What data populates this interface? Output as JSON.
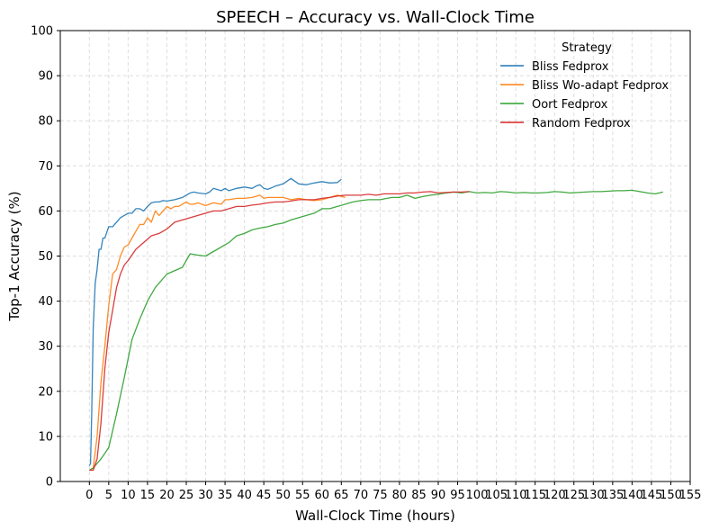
{
  "chart_data": {
    "type": "line",
    "title": "SPEECH – Accuracy vs. Wall-Clock Time",
    "xlabel": "Wall-Clock Time (hours)",
    "ylabel": "Top-1 Accuracy (%)",
    "xlim": [
      -7.5,
      155
    ],
    "ylim": [
      0,
      100
    ],
    "xticks": [
      0,
      5,
      10,
      15,
      20,
      25,
      30,
      35,
      40,
      45,
      50,
      55,
      60,
      65,
      70,
      75,
      80,
      85,
      90,
      95,
      100,
      105,
      110,
      115,
      120,
      125,
      130,
      135,
      140,
      145,
      150,
      155
    ],
    "yticks": [
      0,
      10,
      20,
      30,
      40,
      50,
      60,
      70,
      80,
      90,
      100
    ],
    "grid": true,
    "legend": {
      "title": "Strategy",
      "placement": "top-right"
    },
    "series": [
      {
        "name": "Bliss Fedprox",
        "color": "#1f77b4",
        "x": [
          0,
          0.3,
          0.6,
          1,
          1.5,
          2,
          2.5,
          3,
          3.5,
          4,
          5,
          6,
          7,
          8,
          9,
          10,
          11,
          12,
          13,
          14,
          15,
          16,
          17,
          18,
          19,
          20,
          22,
          24,
          25,
          26,
          27,
          28,
          30,
          31,
          32,
          34,
          35,
          36,
          38,
          40,
          42,
          43,
          44,
          45,
          46,
          48,
          50,
          52,
          54,
          56,
          58,
          60,
          62,
          64,
          65
        ],
        "y": [
          3.5,
          4,
          15,
          34,
          44,
          47,
          51.5,
          51.5,
          54,
          54,
          56.5,
          56.5,
          57.5,
          58.5,
          59,
          59.5,
          59.5,
          60.5,
          60.5,
          60,
          61,
          61.8,
          62,
          62,
          62.3,
          62.2,
          62.5,
          63,
          63.5,
          64,
          64.2,
          64,
          63.8,
          64.2,
          65,
          64.5,
          65,
          64.5,
          65,
          65.3,
          65,
          65.5,
          65.8,
          65,
          64.8,
          65.5,
          66,
          67.2,
          66,
          65.8,
          66.2,
          66.5,
          66.2,
          66.3,
          67
        ]
      },
      {
        "name": "Bliss Wo-adapt Fedprox",
        "color": "#ff7f0e",
        "x": [
          0,
          1,
          2,
          3,
          4,
          5,
          6,
          7,
          8,
          9,
          10,
          11,
          12,
          13,
          14,
          15,
          16,
          17,
          18,
          19,
          20,
          21,
          22,
          23,
          24,
          25,
          26,
          27,
          28,
          30,
          31,
          32,
          34,
          35,
          36,
          38,
          40,
          42,
          44,
          45,
          46,
          48,
          50,
          52,
          54,
          56,
          58,
          60,
          62,
          64,
          66
        ],
        "y": [
          2.5,
          3,
          10,
          22,
          30,
          39,
          46,
          47,
          50,
          52,
          52.5,
          54,
          55.5,
          57,
          57,
          58.5,
          57.5,
          60,
          59,
          60,
          61,
          60.5,
          61,
          61,
          61.5,
          62,
          61.5,
          61.5,
          61.8,
          61.2,
          61.5,
          61.8,
          61.5,
          62.5,
          62.5,
          62.8,
          62.8,
          63,
          63.5,
          62.8,
          63,
          63,
          63,
          62.5,
          62.8,
          62.5,
          62.3,
          62.5,
          63,
          63.5,
          63
        ]
      },
      {
        "name": "Oort Fedprox",
        "color": "#2ca02c",
        "x": [
          0,
          1,
          2,
          3,
          5,
          7,
          9,
          11,
          13,
          15,
          17,
          20,
          24,
          26,
          28,
          30,
          33,
          36,
          38,
          40,
          42,
          44,
          46,
          48,
          50,
          52,
          54,
          56,
          58,
          60,
          62,
          64,
          66,
          68,
          70,
          72,
          75,
          78,
          80,
          82,
          84,
          86,
          88,
          90,
          92,
          94,
          96,
          98,
          100,
          102,
          104,
          106,
          108,
          110,
          112,
          114,
          116,
          118,
          120,
          122,
          124,
          126,
          128,
          130,
          132,
          134,
          136,
          138,
          140,
          142,
          144,
          146,
          148
        ],
        "y": [
          2.5,
          3,
          4,
          5,
          7.5,
          15,
          23,
          31.5,
          36,
          40,
          43,
          46,
          47.5,
          50.5,
          50.2,
          50,
          51.5,
          53,
          54.5,
          55,
          55.8,
          56.2,
          56.5,
          57,
          57.3,
          58,
          58.5,
          59,
          59.5,
          60.5,
          60.5,
          61,
          61.5,
          62,
          62.3,
          62.5,
          62.5,
          63,
          63,
          63.5,
          62.8,
          63.2,
          63.5,
          63.7,
          64,
          64.2,
          64,
          64.3,
          64,
          64.1,
          64,
          64.3,
          64.2,
          64,
          64.1,
          64,
          64,
          64.1,
          64.3,
          64.2,
          64,
          64.1,
          64.2,
          64.3,
          64.3,
          64.4,
          64.5,
          64.5,
          64.6,
          64.3,
          64,
          63.8,
          64.2
        ]
      },
      {
        "name": "Random Fedprox",
        "color": "#d62728",
        "x": [
          0,
          1,
          2,
          3,
          4,
          5,
          6,
          7,
          8,
          9,
          10,
          12,
          14,
          16,
          18,
          20,
          22,
          24,
          26,
          28,
          30,
          32,
          34,
          36,
          38,
          40,
          42,
          44,
          46,
          48,
          50,
          52,
          54,
          56,
          58,
          60,
          62,
          64,
          66,
          68,
          70,
          72,
          74,
          76,
          78,
          80,
          82,
          84,
          86,
          88,
          90,
          92,
          94,
          96,
          98
        ],
        "y": [
          2.5,
          2.5,
          5,
          13,
          25,
          33,
          38,
          43,
          46,
          48,
          49,
          51.5,
          53,
          54.5,
          55,
          56,
          57.5,
          58,
          58.5,
          59,
          59.5,
          60,
          60,
          60.5,
          61,
          61,
          61.3,
          61.5,
          61.8,
          62,
          62,
          62.2,
          62.5,
          62.5,
          62.5,
          62.8,
          63,
          63.3,
          63.5,
          63.5,
          63.5,
          63.7,
          63.5,
          63.8,
          63.8,
          63.8,
          64,
          64,
          64.2,
          64.3,
          64,
          64.1,
          64.2,
          64.2,
          64.3
        ]
      }
    ]
  }
}
